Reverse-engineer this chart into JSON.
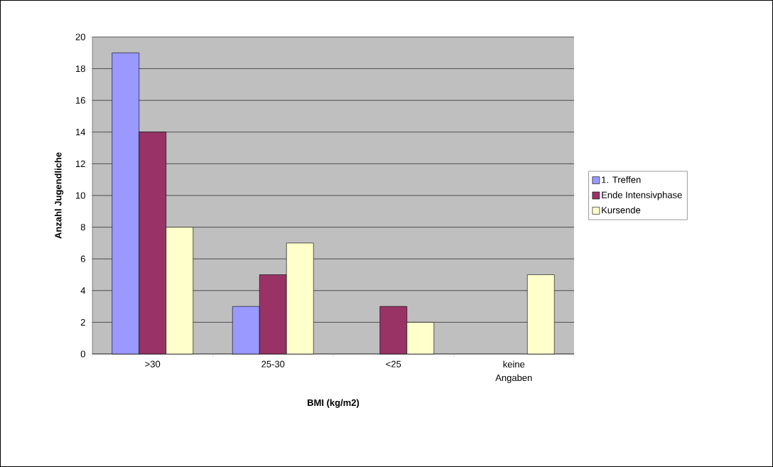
{
  "chart_data": {
    "type": "bar",
    "xlabel": "BMI (kg/m2)",
    "ylabel": "Anzahl Jugendliche",
    "categories": [
      ">30",
      "25-30",
      "<25",
      "keine Angaben"
    ],
    "series": [
      {
        "name": "1. Treffen",
        "color": "#9999ff",
        "values": [
          19,
          3,
          null,
          null
        ]
      },
      {
        "name": "Ende Intensivphase",
        "color": "#993366",
        "values": [
          14,
          5,
          3,
          null
        ]
      },
      {
        "name": "Kursende",
        "color": "#ffffcc",
        "values": [
          8,
          7,
          2,
          5
        ]
      }
    ],
    "ylim": [
      0,
      20
    ],
    "yticks": [
      0,
      2,
      4,
      6,
      8,
      10,
      12,
      14,
      16,
      18,
      20
    ],
    "grid": "y",
    "legend": "right"
  }
}
